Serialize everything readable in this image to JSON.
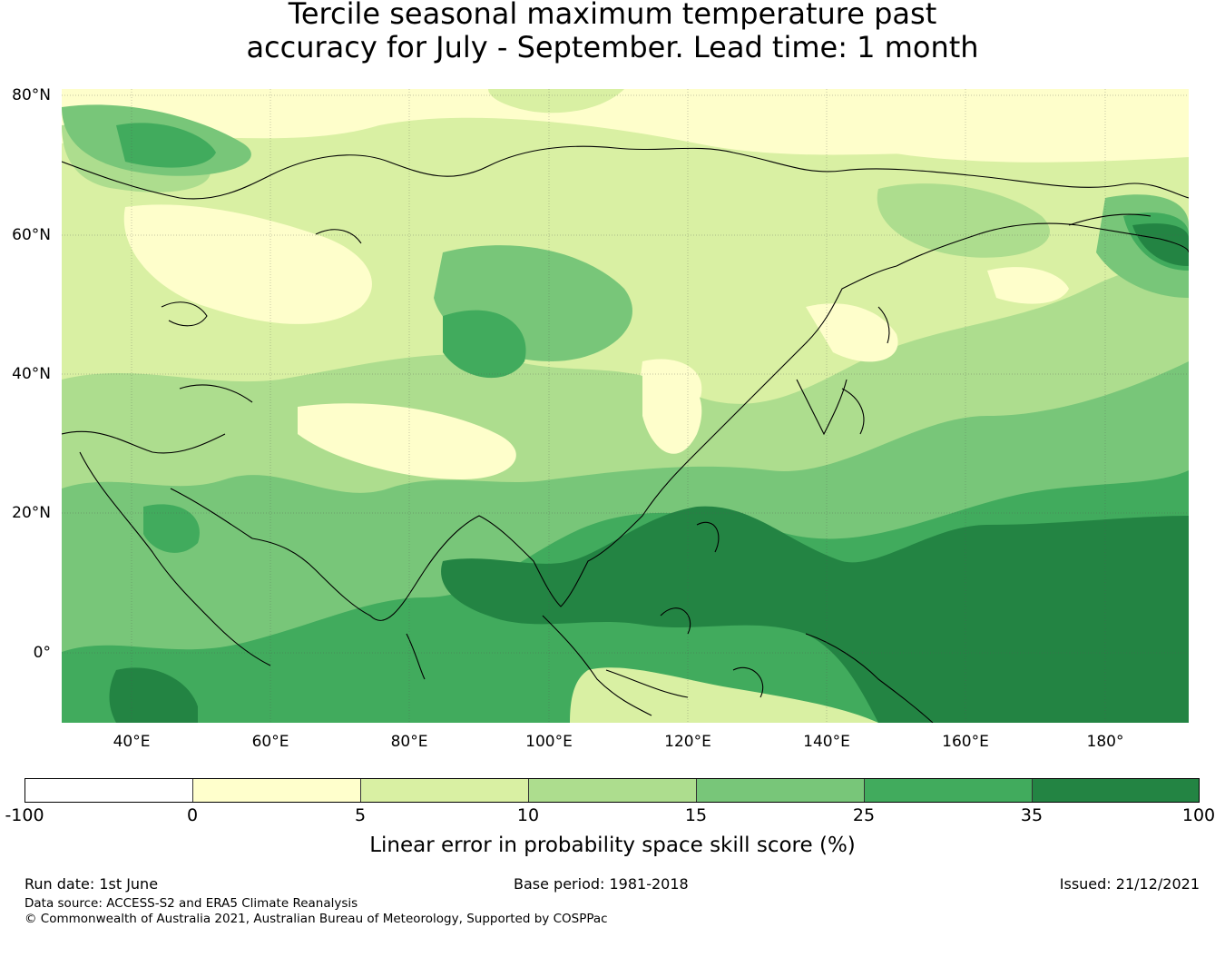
{
  "title": {
    "line1": "Tercile seasonal maximum temperature past",
    "line2": "accuracy for July - September. Lead time: 1 month"
  },
  "map": {
    "latitude_labels": [
      "80°N",
      "60°N",
      "40°N",
      "20°N",
      "0°"
    ],
    "longitude_labels": [
      "40°E",
      "60°E",
      "80°E",
      "100°E",
      "120°E",
      "140°E",
      "160°E",
      "180°"
    ],
    "extent": {
      "lon_min": 30,
      "lon_max": 192,
      "lat_min": -10,
      "lat_max": 81
    },
    "graticule": "on"
  },
  "colorbar": {
    "ticks": [
      "-100",
      "0",
      "5",
      "10",
      "15",
      "25",
      "35",
      "100"
    ],
    "colors": [
      "#ffffff",
      "#ffffcc",
      "#d9f0a3",
      "#addd8e",
      "#78c679",
      "#41ab5d",
      "#238443"
    ],
    "label": "Linear error in probability space skill score (%)"
  },
  "footer": {
    "run_date": "Run date: 1st June",
    "base_period": "Base period: 1981-2018",
    "issued": "Issued: 21/12/2021",
    "data_source": "Data source: ACCESS-S2 and ERA5 Climate Reanalysis",
    "copyright": "© Commonwealth of Australia 2021, Australian Bureau of Meteorology, Supported by COSPPac"
  }
}
